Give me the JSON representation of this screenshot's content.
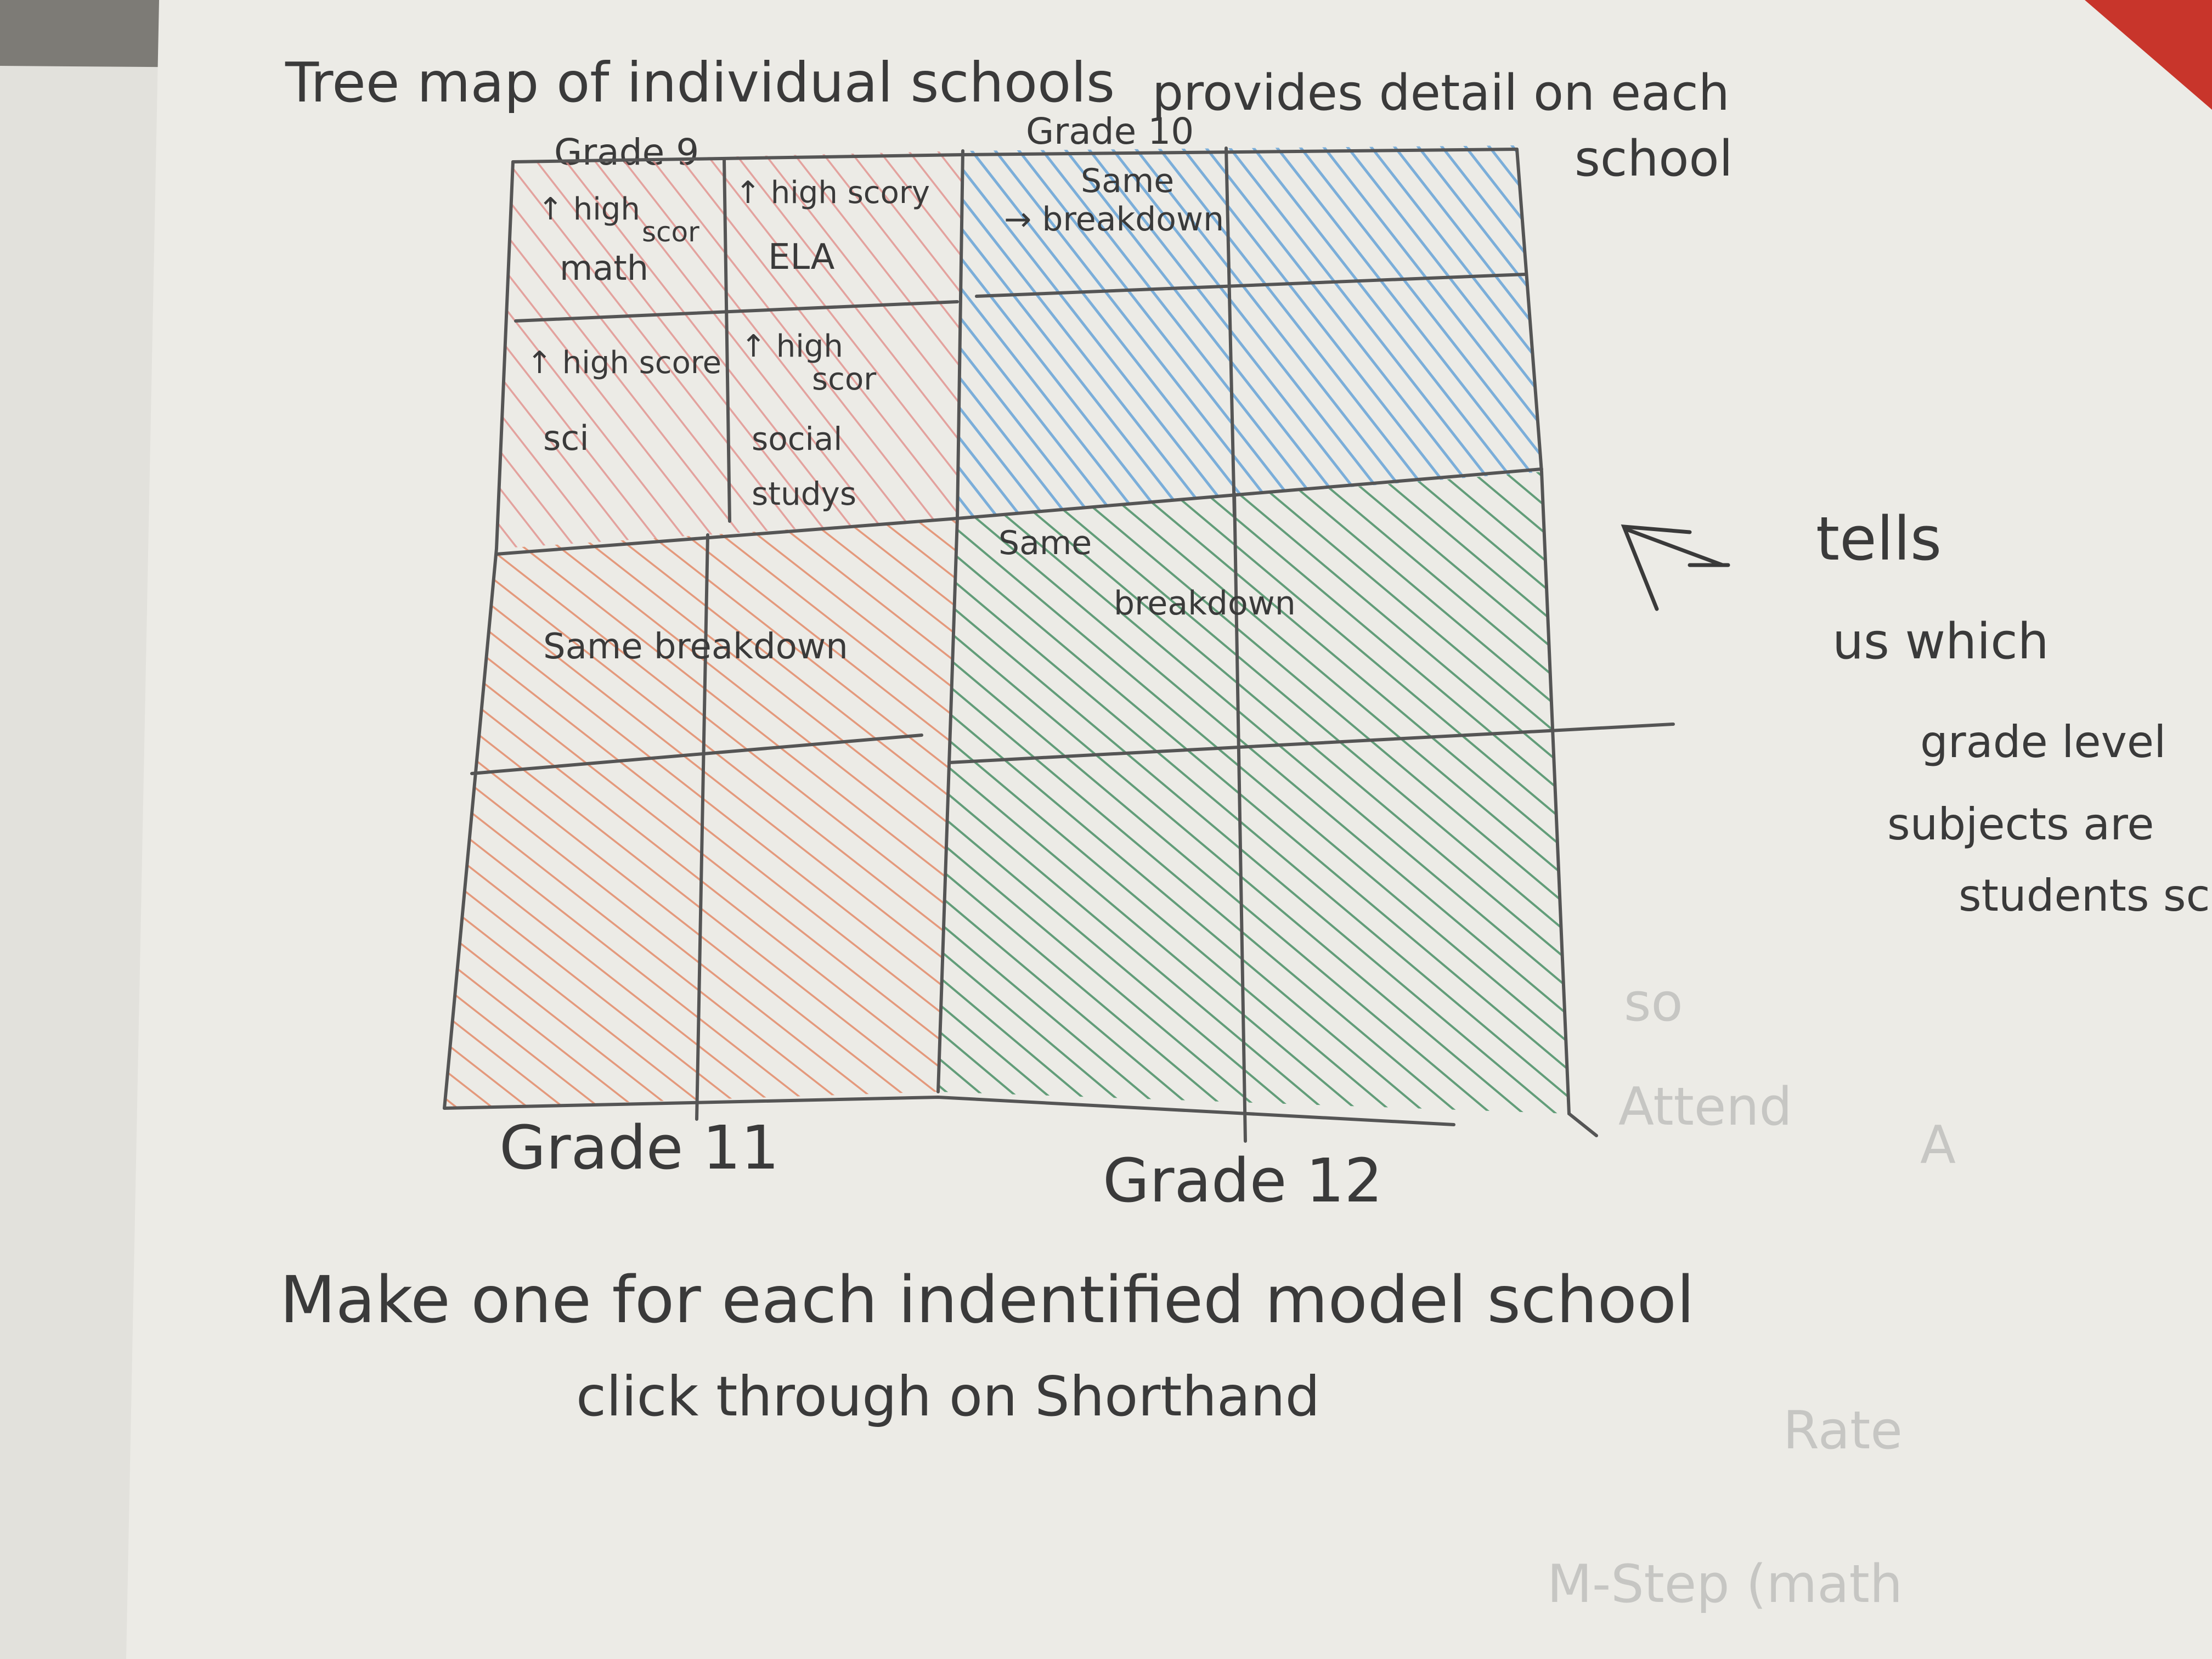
{
  "sketch": {
    "title": "Tree map of individual schools",
    "subtitle_line1": "provides detail on each",
    "subtitle_line2": "school",
    "grade_labels": {
      "grade9": "Grade 9",
      "grade10": "Grade 10",
      "grade11": "Grade 11",
      "grade12": "Grade 12"
    },
    "grade9_cells": {
      "math_line1": "↑ high",
      "math_line2": "scor",
      "math_line3": "math",
      "ela_line1": "↑ high scory",
      "ela_line2": "ELA",
      "sci_line1": "↑ high score",
      "sci_line2": "sci",
      "social_line1": "↑ high",
      "social_line2": "scor",
      "social_line3": "social",
      "social_line4": "studys"
    },
    "grade10_note_line1": "Same",
    "grade10_note_line2": "→ breakdown",
    "grade11_note": "Same breakdown",
    "grade12_note_line1": "Same",
    "grade12_note_line2": "breakdown",
    "side_note": {
      "arrow_icon": "arrow-pointing-left-up",
      "line1": "tells",
      "line2": "us which",
      "line3": "grade level",
      "line4": "subjects are",
      "line5": "students sc"
    },
    "footer_line1": "Make one for each indentified model school",
    "footer_line2": "click through on Shorthand",
    "background_print_fragments": [
      "so",
      "Attend",
      "A",
      "Rate",
      "M-Step (math"
    ],
    "colors": {
      "paper": "#ecebe6",
      "paper_under": "#e2e1dc",
      "desk": "#7d7b76",
      "grade9_red": "#e08a86",
      "grade10_blue": "#5f9fd6",
      "grade11_orange": "#e38461",
      "grade12_green": "#3f8a5e",
      "pencil": "#555555",
      "red_pencil": "#c8352b"
    }
  }
}
